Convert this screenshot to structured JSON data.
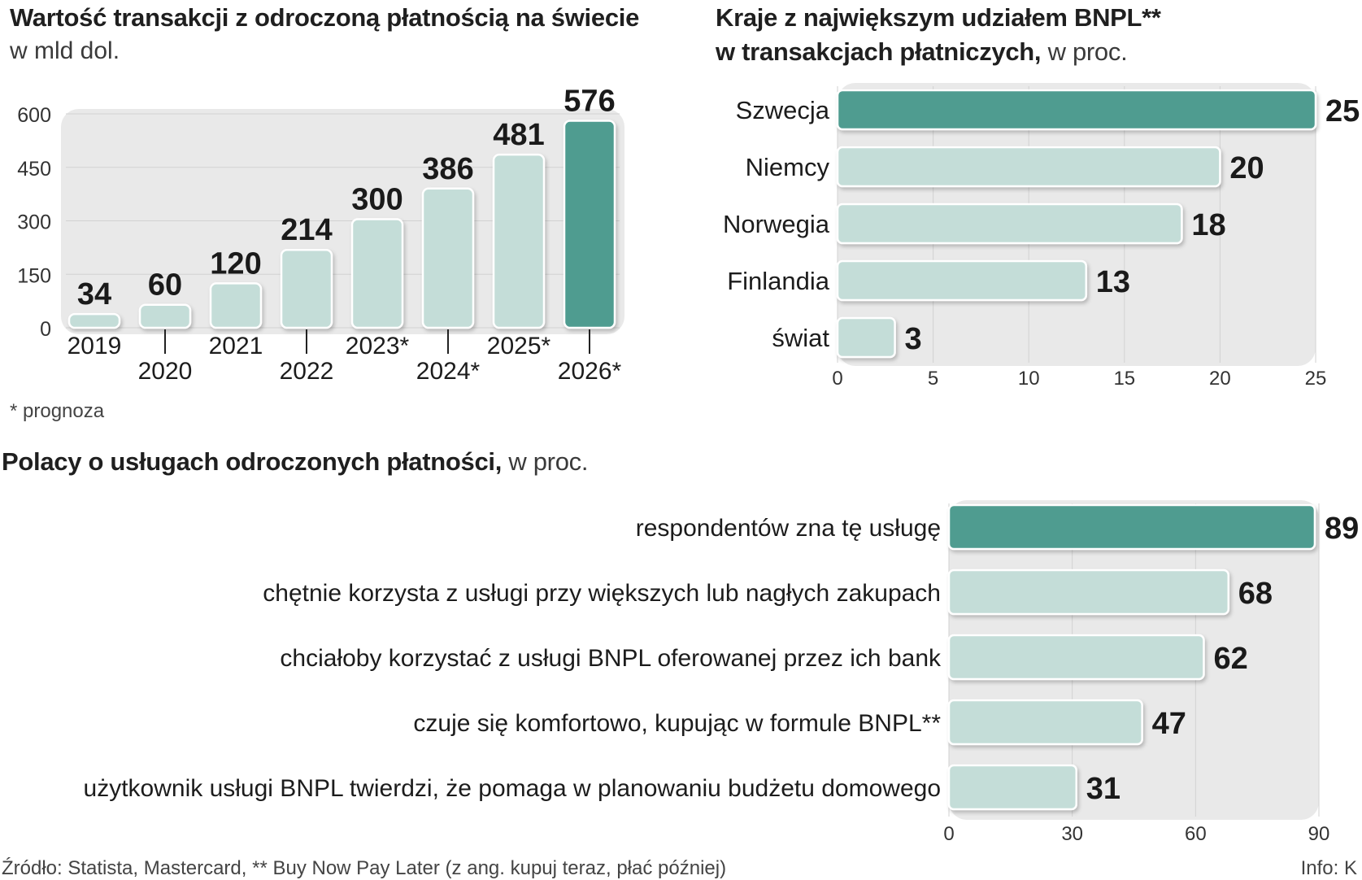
{
  "chart_data": [
    {
      "type": "bar",
      "orientation": "vertical",
      "title": "Wartość transakcji z odroczoną płatnością na świecie",
      "subtitle": "w mld dol.",
      "categories": [
        "2019",
        "2020",
        "2021",
        "2022",
        "2023*",
        "2024*",
        "2025*",
        "2026*"
      ],
      "values": [
        34,
        60,
        120,
        214,
        300,
        386,
        481,
        576
      ],
      "value_labels": [
        "34",
        "60",
        "120",
        "214",
        "300",
        "386",
        "481",
        "576"
      ],
      "highlight_index": 7,
      "ylim": [
        0,
        600
      ],
      "yticks": [
        "0",
        "150",
        "300",
        "450",
        "600"
      ],
      "ytick_values": [
        0,
        150,
        300,
        450,
        600
      ],
      "note": "* prognoza",
      "xlabel": "",
      "ylabel": ""
    },
    {
      "type": "bar",
      "orientation": "horizontal",
      "title": "Kraje z największym udziałem BNPL**",
      "title_line2": "w transakcjach płatniczych,",
      "unit": "w proc.",
      "categories": [
        "Szwecja",
        "Niemcy",
        "Norwegia",
        "Finlandia",
        "świat"
      ],
      "values": [
        25,
        20,
        18,
        13,
        3
      ],
      "value_labels": [
        "25",
        "20",
        "18",
        "13",
        "3"
      ],
      "highlight_index": 0,
      "xlim": [
        0,
        25
      ],
      "xticks": [
        "0",
        "5",
        "10",
        "15",
        "20",
        "25"
      ],
      "xtick_values": [
        0,
        5,
        10,
        15,
        20,
        25
      ]
    },
    {
      "type": "bar",
      "orientation": "horizontal",
      "title": "Polacy o usługach odroczonych płatności,",
      "unit": "w proc.",
      "categories": [
        "respondentów zna tę usługę",
        "chętnie korzysta z usługi przy większych lub nagłych zakupach",
        "chciałoby korzystać z usługi BNPL oferowanej przez ich bank",
        "czuje się komfortowo, kupując w formule BNPL**",
        "użytkownik usługi BNPL twierdzi, że pomaga w planowaniu budżetu domowego"
      ],
      "values": [
        89,
        68,
        62,
        47,
        31
      ],
      "value_labels": [
        "89",
        "68",
        "62",
        "47",
        "31"
      ],
      "highlight_index": 0,
      "xlim": [
        0,
        90
      ],
      "xticks": [
        "0",
        "30",
        "60",
        "90"
      ],
      "xtick_values": [
        0,
        30,
        60,
        90
      ]
    }
  ],
  "footer": {
    "source": "Źródło: Statista, Mastercard, ** Buy Now Pay Later (z ang. kupuj teraz, płać później)",
    "credit": "Info: K"
  },
  "colors": {
    "highlight": "#4f9c90",
    "bar": "#c4ddd8",
    "bar_border": "#ffffff",
    "panel": "#e9e9e9",
    "grid": "#d2d2d2",
    "text": "#1c1c1c"
  }
}
